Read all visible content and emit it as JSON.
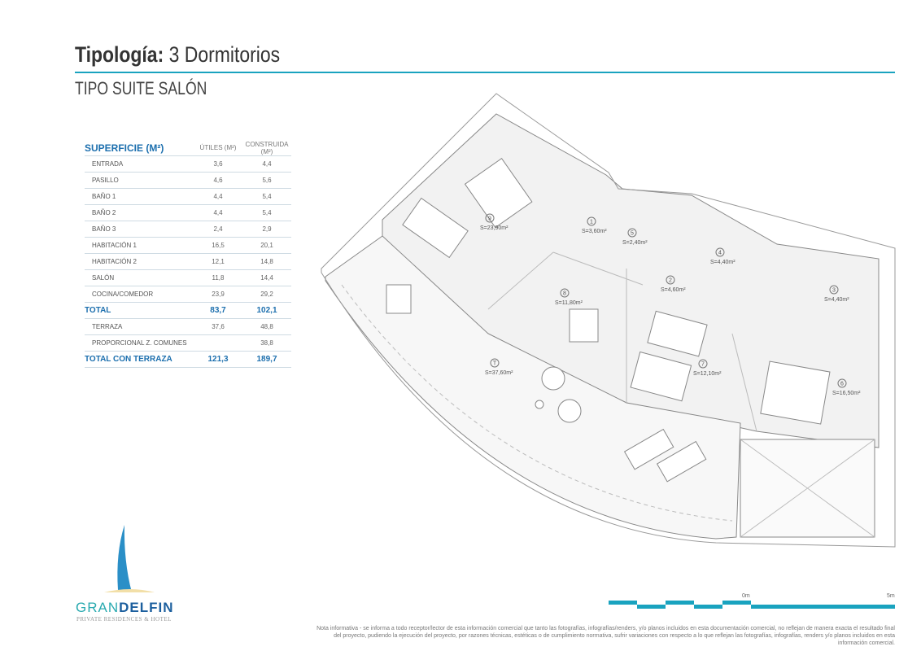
{
  "header": {
    "title_bold": "Tipología:",
    "title_rest": "3 Dormitorios",
    "subtitle": "TIPO SUITE SALÓN"
  },
  "table": {
    "heading": "SUPERFICIE (M²)",
    "col1": "ÚTILES (M²)",
    "col2": "CONSTRUIDA (M²)",
    "rows": [
      {
        "name": "ENTRADA",
        "u": "3,6",
        "c": "4,4"
      },
      {
        "name": "PASILLO",
        "u": "4,6",
        "c": "5,6"
      },
      {
        "name": "BAÑO 1",
        "u": "4,4",
        "c": "5,4"
      },
      {
        "name": "BAÑO 2",
        "u": "4,4",
        "c": "5,4"
      },
      {
        "name": "BAÑO 3",
        "u": "2,4",
        "c": "2,9"
      },
      {
        "name": "HABITACIÓN 1",
        "u": "16,5",
        "c": "20,1"
      },
      {
        "name": "HABITACIÓN 2",
        "u": "12,1",
        "c": "14,8"
      },
      {
        "name": "SALÓN",
        "u": "11,8",
        "c": "14,4"
      },
      {
        "name": "COCINA/COMEDOR",
        "u": "23,9",
        "c": "29,2"
      }
    ],
    "total": {
      "name": "TOTAL",
      "u": "83,7",
      "c": "102,1"
    },
    "extra": [
      {
        "name": "TERRAZA",
        "u": "37,6",
        "c": "48,8"
      },
      {
        "name": "PROPORCIONAL Z. COMUNES",
        "u": "",
        "c": "38,8"
      }
    ],
    "grand_total": {
      "name": "TOTAL CON TERRAZA",
      "u": "121,3",
      "c": "189,7"
    }
  },
  "plan": {
    "rooms": [
      {
        "n": "9",
        "s": "S=23,90m²"
      },
      {
        "n": "1",
        "s": "S=3,60m²"
      },
      {
        "n": "5",
        "s": "S=2,40m²"
      },
      {
        "n": "4",
        "s": "S=4,40m²"
      },
      {
        "n": "2",
        "s": "S=4,60m²"
      },
      {
        "n": "3",
        "s": "S=4,40m²"
      },
      {
        "n": "8",
        "s": "S=11,80m²"
      },
      {
        "n": "7",
        "s": "S=12,10m²"
      },
      {
        "n": "6",
        "s": "S=16,50m²"
      },
      {
        "n": "T",
        "s": "S=37,60m²"
      }
    ]
  },
  "scale": {
    "start": "0m",
    "end": "5m",
    "color": "#1aa3bf"
  },
  "brand": {
    "name_a": "GRAN",
    "name_b": "DELFIN",
    "tagline": "PRIVATE RESIDENCES & HOTEL"
  },
  "note": "Nota informativa - se informa a todo receptor/lector de esta información comercial que tanto las fotografías, infografías/renders, y/o planos incluidos en esta documentación comercial, no reflejan de manera exacta el resultado final del proyecto, pudiendo la ejecución del proyecto, por razones técnicas, estéticas o de cumplimiento normativa, sufrir variaciones con respecto a lo que reflejan las fotografías, infografías, renders y/o planos incluidos en esta información comercial.",
  "colors": {
    "accent": "#1aa3bf",
    "brand_blue": "#1c6fae"
  }
}
